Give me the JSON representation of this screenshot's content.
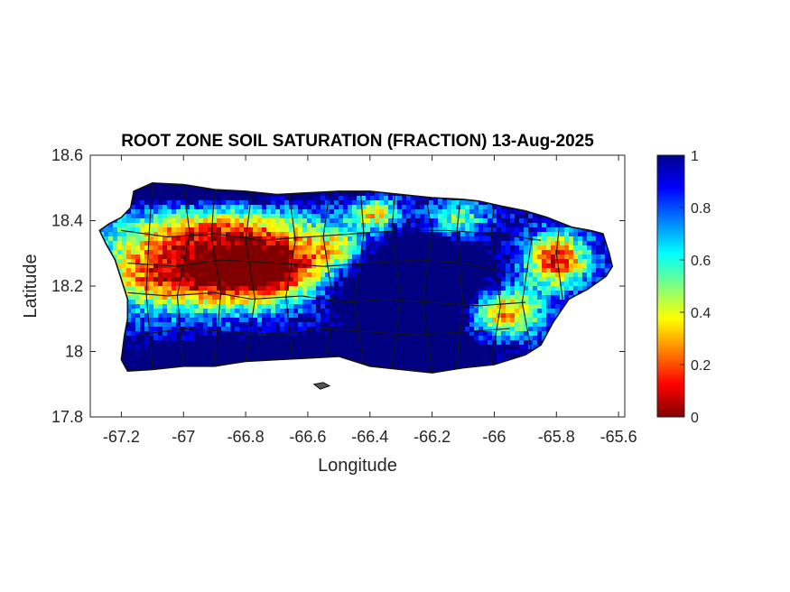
{
  "figure": {
    "title": "ROOT ZONE SOIL SATURATION (FRACTION) 13-Aug-2025",
    "xlabel": "Longitude",
    "ylabel": "Latitude"
  },
  "chart_data": {
    "type": "heatmap",
    "title": "ROOT ZONE SOIL SATURATION (FRACTION) 13-Aug-2025",
    "xlabel": "Longitude",
    "ylabel": "Latitude",
    "xlim": [
      -67.3,
      -65.58
    ],
    "ylim": [
      17.8,
      18.6
    ],
    "xticks": [
      -67.2,
      -67,
      -66.8,
      -66.6,
      -66.4,
      -66.2,
      -66,
      -65.8,
      -65.6
    ],
    "xtick_labels": [
      "-67.2",
      "-67",
      "-66.8",
      "-66.6",
      "-66.4",
      "-66.2",
      "-66",
      "-65.8",
      "-65.6"
    ],
    "yticks": [
      17.8,
      18,
      18.2,
      18.4,
      18.6
    ],
    "ytick_labels": [
      "17.8",
      "18",
      "18.2",
      "18.4",
      "18.6"
    ],
    "colorbar": {
      "colormap": "jet",
      "range": [
        0,
        1
      ],
      "ticks": [
        0,
        0.2,
        0.4,
        0.6,
        0.8,
        1
      ],
      "tick_labels": [
        "0",
        "0.2",
        "0.4",
        "0.6",
        "0.8",
        "1"
      ]
    },
    "grid": false,
    "colors": {
      "dry": "#800000",
      "mid": "#ffff00",
      "wet": "#00008f",
      "boundary": "#111111"
    }
  }
}
